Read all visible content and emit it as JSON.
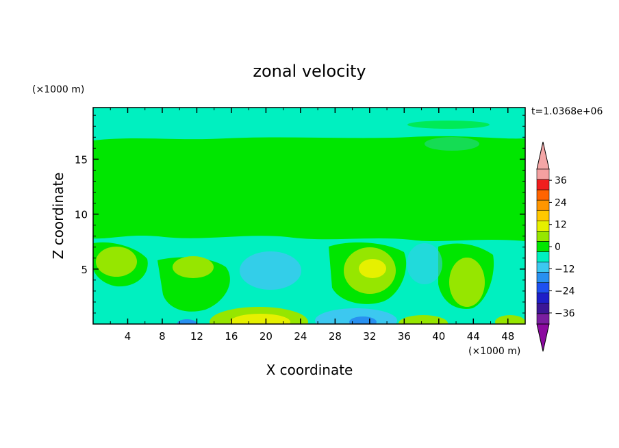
{
  "chart_data": {
    "type": "heatmap",
    "title": "zonal velocity",
    "xlabel": "X coordinate",
    "ylabel": "Z coordinate",
    "x_units": "(×1000 m)",
    "y_units": "(×1000 m)",
    "time_label": "t=1.0368e+06",
    "xlim": [
      0,
      50
    ],
    "ylim": [
      0,
      19.7
    ],
    "x_ticks": [
      4,
      8,
      12,
      16,
      20,
      24,
      28,
      32,
      36,
      40,
      44,
      48
    ],
    "y_ticks": [
      5,
      10,
      15
    ],
    "grid": false,
    "colorbar": {
      "levels": [
        -42,
        -36,
        -30,
        -24,
        -18,
        -12,
        -6,
        0,
        6,
        12,
        18,
        24,
        30,
        36,
        42
      ],
      "tick_labels": [
        "36",
        "24",
        "12",
        "0",
        "−12",
        "−24",
        "−36"
      ],
      "tick_values": [
        36,
        24,
        12,
        0,
        -12,
        -24,
        -36
      ],
      "colors": [
        "#7a1ea0",
        "#3c1696",
        "#1e1ec8",
        "#1e50f0",
        "#2890f0",
        "#3cc8f0",
        "#00f0c0",
        "#00e600",
        "#96e600",
        "#e6f000",
        "#ffc800",
        "#ff9600",
        "#ff6400",
        "#f01e1e",
        "#f4a0a0"
      ],
      "under_color": "#8c0aa0",
      "over_color": "#f4a6a6"
    },
    "field_regions": [
      {
        "label": "upper layer",
        "z_range": [
          17,
          19.7
        ],
        "value": -8
      },
      {
        "label": "mid layer",
        "z_range": [
          8,
          17
        ],
        "value": 0
      },
      {
        "label": "lower layer",
        "z_range": [
          0,
          8
        ],
        "value": -8
      },
      {
        "label": "positive core",
        "x": 2,
        "z": 5.8,
        "value": 8
      },
      {
        "label": "positive core",
        "x": 11,
        "z": 5.5,
        "value": 8
      },
      {
        "label": "positive core",
        "x": 31,
        "z": 5.3,
        "value": 14
      },
      {
        "label": "positive core",
        "x": 43,
        "z": 5,
        "value": 8
      },
      {
        "label": "positive core",
        "x": 20,
        "z": 0.7,
        "value": 14
      },
      {
        "label": "negative core",
        "x": 20,
        "z": 5.5,
        "value": -14
      },
      {
        "label": "negative core",
        "x": 32,
        "z": 0.4,
        "value": -20
      },
      {
        "label": "negative core",
        "x": 11.5,
        "z": 0.2,
        "value": -20
      }
    ]
  }
}
